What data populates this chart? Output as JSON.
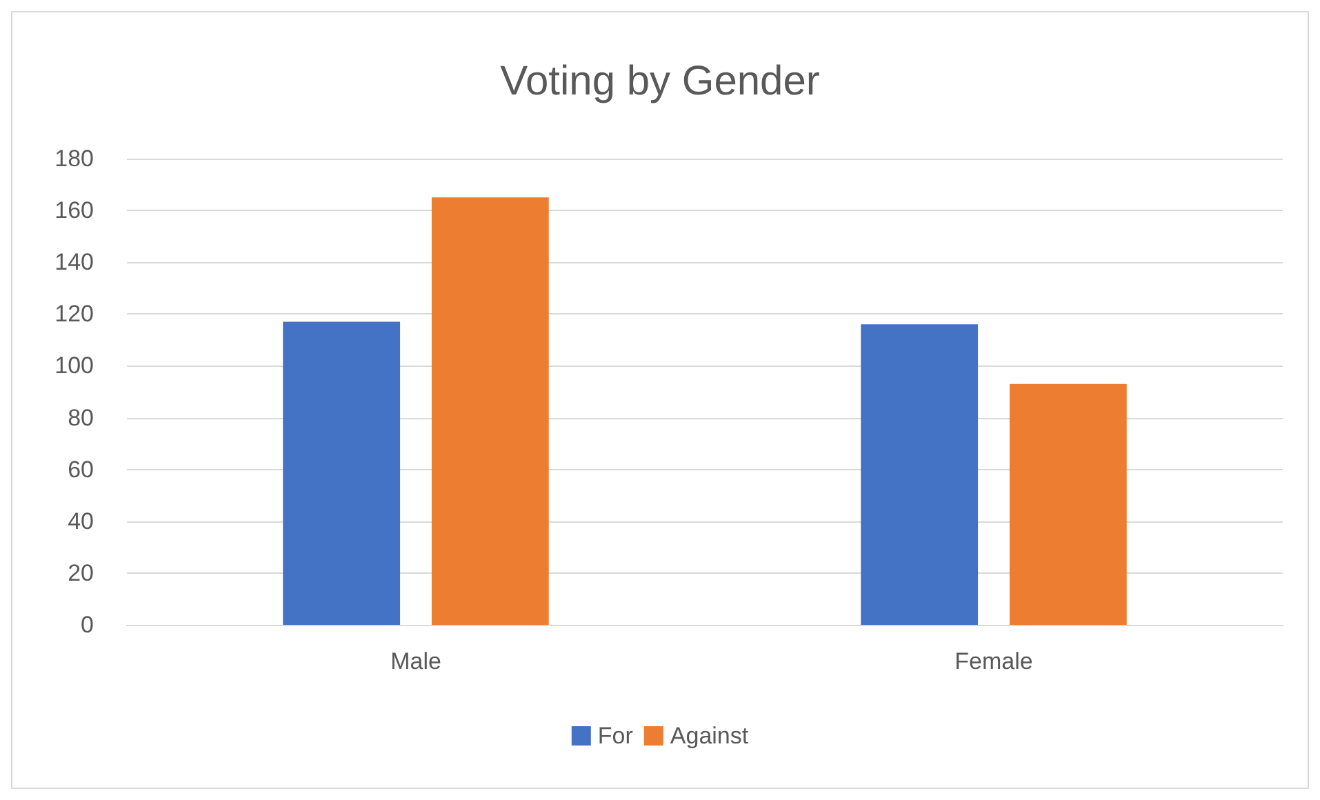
{
  "chart_data": {
    "type": "bar",
    "title": "Voting by Gender",
    "categories": [
      "Male",
      "Female"
    ],
    "series": [
      {
        "name": "For",
        "color": "#4472c4",
        "values": [
          117,
          116
        ]
      },
      {
        "name": "Against",
        "color": "#ed7d31",
        "values": [
          165,
          93
        ]
      }
    ],
    "ylim": [
      0,
      180
    ],
    "yticks": [
      0,
      20,
      40,
      60,
      80,
      100,
      120,
      140,
      160,
      180
    ],
    "grid": "y",
    "legend": "bottom"
  }
}
